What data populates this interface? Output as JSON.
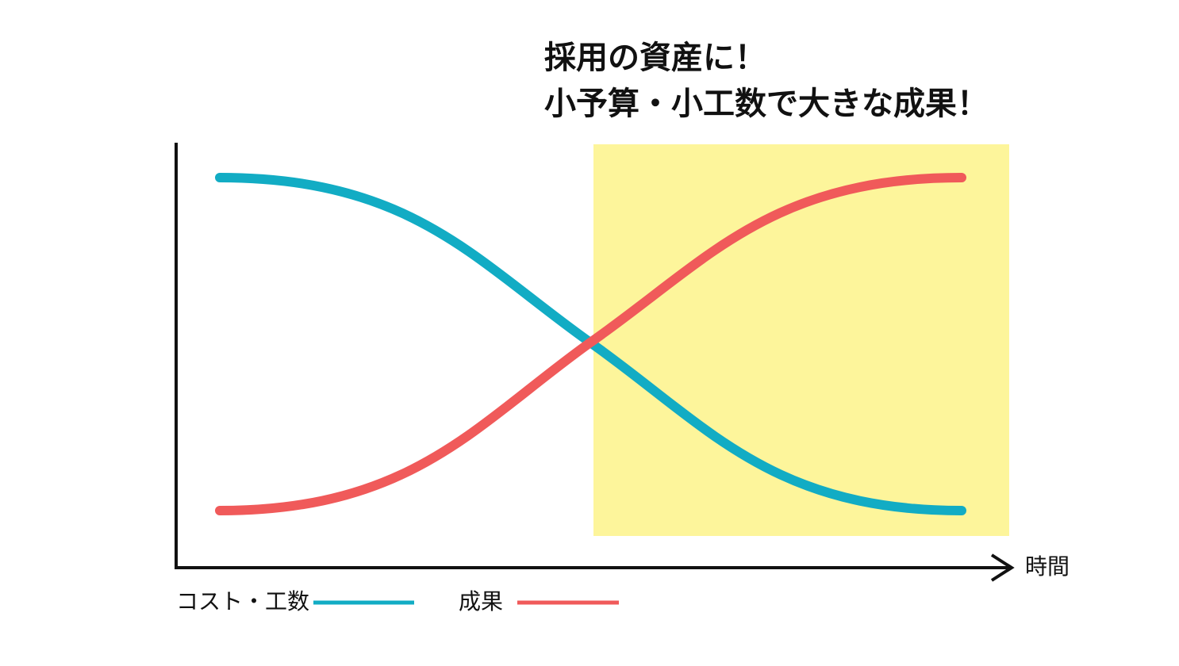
{
  "annotation": {
    "lines": [
      "採用の資産に！",
      "小予算・小工数で大きな成果！"
    ]
  },
  "axis": {
    "x_label": "時間"
  },
  "legend": {
    "items": [
      {
        "label": "コスト・工数"
      },
      {
        "label": "成果"
      }
    ]
  }
}
